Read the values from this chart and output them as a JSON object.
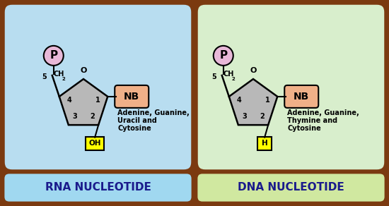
{
  "outer_bg": "#7B3A10",
  "rna_bg_top": "#a8d8f0",
  "rna_bg_bot": "#dff0fa",
  "dna_bg_top": "#d8eec8",
  "dna_bg_bot": "#f0f8e8",
  "rna_label_bg_top": "#60d0f0",
  "rna_label_bg_bot": "#c8eef8",
  "dna_label_bg_top": "#c8e890",
  "dna_label_bg_bot": "#e8f8d0",
  "panel_border": "#7B3A10",
  "phosphate_color": "#e8b8d8",
  "nb_color": "#f0b088",
  "oh_color": "#ffff00",
  "sugar_color": "#b8b8b8",
  "rna_title": "RNA NUCLEOTIDE",
  "dna_title": "DNA NUCLEOTIDE",
  "rna_bases_line1": "Adenine, Guanine,",
  "rna_bases_line2": "Uracil and",
  "rna_bases_line3": "Cytosine",
  "dna_bases_line1": "Adenine, Guanine,",
  "dna_bases_line2": "Thymine and",
  "dna_bases_line3": "Cytosine",
  "rna_oh_label": "OH",
  "dna_h_label": "H",
  "title_color": "#1a1a8c",
  "label_fontsize": 11,
  "inner_num_fontsize": 7,
  "base_text_fontsize": 7
}
